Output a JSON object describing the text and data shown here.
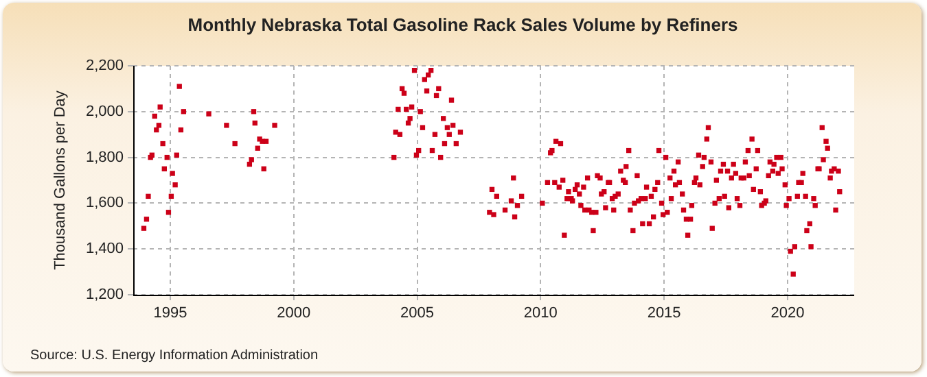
{
  "chart_data": {
    "type": "scatter",
    "title": "Monthly Nebraska Total Gasoline Rack Sales Volume by Refiners",
    "ylabel": "Thousand Gallons per Day",
    "annotations": [
      "Source: U.S. Energy Information Administration"
    ],
    "x": [
      1993.93,
      1994.04,
      1994.11,
      1994.2,
      1994.26,
      1994.37,
      1994.44,
      1994.54,
      1994.59,
      1994.7,
      1994.76,
      1994.87,
      1994.93,
      1995.04,
      1995.09,
      1995.2,
      1995.26,
      1995.37,
      1995.43,
      1995.54,
      1996.56,
      1997.28,
      1997.62,
      1998.21,
      1998.29,
      1998.38,
      1998.43,
      1998.54,
      1998.62,
      1998.73,
      1998.79,
      1998.88,
      1999.23,
      2004.06,
      2004.13,
      2004.23,
      2004.3,
      2004.39,
      2004.47,
      2004.56,
      2004.64,
      2004.71,
      2004.78,
      2004.89,
      2004.97,
      2005.06,
      2005.13,
      2005.22,
      2005.3,
      2005.39,
      2005.45,
      2005.56,
      2005.61,
      2005.72,
      2005.78,
      2005.87,
      2005.95,
      2006.06,
      2006.11,
      2006.22,
      2006.3,
      2006.39,
      2006.45,
      2006.58,
      2006.75,
      2007.93,
      2008.03,
      2008.1,
      2008.22,
      2008.56,
      2008.81,
      2008.9,
      2008.95,
      2009.06,
      2009.23,
      2010.07,
      2010.28,
      2010.4,
      2010.46,
      2010.57,
      2010.62,
      2010.75,
      2010.81,
      2010.9,
      2010.96,
      2011.07,
      2011.13,
      2011.24,
      2011.29,
      2011.4,
      2011.48,
      2011.57,
      2011.63,
      2011.74,
      2011.79,
      2011.9,
      2011.96,
      2012.07,
      2012.13,
      2012.24,
      2012.3,
      2012.41,
      2012.46,
      2012.57,
      2012.63,
      2012.74,
      2012.79,
      2012.9,
      2012.96,
      2013.02,
      2013.14,
      2013.24,
      2013.35,
      2013.43,
      2013.46,
      2013.57,
      2013.63,
      2013.74,
      2013.8,
      2013.91,
      2013.96,
      2014.07,
      2014.13,
      2014.24,
      2014.29,
      2014.4,
      2014.48,
      2014.57,
      2014.63,
      2014.74,
      2014.79,
      2014.9,
      2014.96,
      2015.07,
      2015.13,
      2015.24,
      2015.29,
      2015.4,
      2015.46,
      2015.57,
      2015.62,
      2015.74,
      2015.79,
      2015.9,
      2015.96,
      2016.07,
      2016.12,
      2016.23,
      2016.29,
      2016.4,
      2016.45,
      2016.56,
      2016.62,
      2016.73,
      2016.79,
      2016.9,
      2016.95,
      2017.06,
      2017.12,
      2017.23,
      2017.29,
      2017.4,
      2017.45,
      2017.57,
      2017.62,
      2017.73,
      2017.81,
      2017.9,
      2017.96,
      2018.07,
      2018.12,
      2018.23,
      2018.29,
      2018.4,
      2018.45,
      2018.56,
      2018.62,
      2018.73,
      2018.79,
      2018.9,
      2018.95,
      2019.06,
      2019.12,
      2019.23,
      2019.29,
      2019.4,
      2019.45,
      2019.56,
      2019.62,
      2019.73,
      2019.78,
      2019.9,
      2019.95,
      2020.06,
      2020.12,
      2020.23,
      2020.29,
      2020.4,
      2020.45,
      2020.56,
      2020.62,
      2020.73,
      2020.78,
      2020.9,
      2020.95,
      2021.06,
      2021.12,
      2021.23,
      2021.28,
      2021.4,
      2021.45,
      2021.56,
      2021.62,
      2021.73,
      2021.78,
      2021.89,
      2021.95,
      2022.06,
      2022.11
    ],
    "series": [
      {
        "color": "#cc0018",
        "values": [
          1490,
          1530,
          1630,
          1800,
          1810,
          1980,
          1920,
          1940,
          2020,
          1860,
          1750,
          1800,
          1560,
          1630,
          1730,
          1680,
          1810,
          2110,
          1920,
          2000,
          1990,
          1940,
          1860,
          1770,
          1790,
          2000,
          1950,
          1840,
          1880,
          1870,
          1750,
          1870,
          1940,
          1800,
          1910,
          2010,
          1900,
          2100,
          2080,
          2010,
          1950,
          1970,
          2020,
          2180,
          1810,
          1830,
          2000,
          1930,
          2140,
          2090,
          2160,
          2180,
          1830,
          1900,
          2070,
          2100,
          1800,
          1970,
          1860,
          1930,
          1900,
          2050,
          1940,
          1860,
          1910,
          1560,
          1660,
          1550,
          1630,
          1570,
          1610,
          1710,
          1540,
          1590,
          1630,
          1600,
          1690,
          1820,
          1830,
          1690,
          1870,
          1670,
          1860,
          1700,
          1460,
          1620,
          1650,
          1620,
          1610,
          1660,
          1680,
          1640,
          1590,
          1670,
          1570,
          1710,
          1570,
          1560,
          1480,
          1560,
          1720,
          1710,
          1640,
          1650,
          1580,
          1690,
          1690,
          1620,
          1570,
          1630,
          1640,
          1740,
          1700,
          1690,
          1760,
          1830,
          1570,
          1480,
          1600,
          1720,
          1610,
          1620,
          1510,
          1620,
          1670,
          1510,
          1630,
          1540,
          1660,
          1690,
          1830,
          1600,
          1550,
          1800,
          1560,
          1710,
          1620,
          1740,
          1680,
          1780,
          1690,
          1640,
          1570,
          1530,
          1460,
          1530,
          1590,
          1690,
          1710,
          1810,
          1680,
          1760,
          1800,
          1880,
          1930,
          1780,
          1490,
          1600,
          1700,
          1620,
          1740,
          1770,
          1630,
          1740,
          1580,
          1710,
          1770,
          1730,
          1620,
          1590,
          1710,
          1710,
          1780,
          1830,
          1720,
          1880,
          1660,
          1750,
          1830,
          1650,
          1590,
          1600,
          1610,
          1720,
          1780,
          1740,
          1770,
          1800,
          1730,
          1800,
          1750,
          1680,
          1590,
          1620,
          1390,
          1290,
          1410,
          1630,
          1690,
          1690,
          1730,
          1630,
          1480,
          1510,
          1410,
          1620,
          1590,
          1750,
          1750,
          1930,
          1790,
          1870,
          1840,
          1710,
          1740,
          1750,
          1570,
          1740,
          1650
        ]
      }
    ],
    "xlim": [
      1993.5,
      2022.7
    ],
    "xticks": [
      1995,
      2000,
      2005,
      2010,
      2015,
      2020
    ],
    "ylim": [
      1200,
      2200
    ],
    "yticks": [
      {
        "value": 1200,
        "label": "1,200"
      },
      {
        "value": 1400,
        "label": "1,400"
      },
      {
        "value": 1600,
        "label": "1,600"
      },
      {
        "value": 1800,
        "label": "1,800"
      },
      {
        "value": 2000,
        "label": "2,000"
      },
      {
        "value": 2200,
        "label": "2,200"
      }
    ],
    "grid": true,
    "legend": false,
    "marker": "square"
  }
}
